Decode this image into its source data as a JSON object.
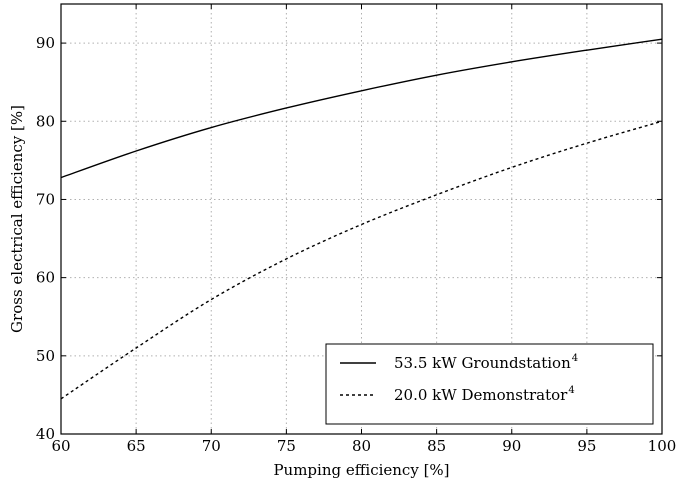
{
  "chart_data": {
    "type": "line",
    "xlabel": "Pumping efficiency [%]",
    "ylabel": "Gross electrical efficiency [%]",
    "xlim": [
      60,
      100
    ],
    "ylim": [
      40,
      95
    ],
    "xticks": [
      60,
      65,
      70,
      75,
      80,
      85,
      90,
      95,
      100
    ],
    "yticks": [
      40,
      50,
      60,
      70,
      80,
      90
    ],
    "grid": true,
    "legend_position": "lower-right",
    "x": [
      60,
      65,
      70,
      75,
      80,
      85,
      90,
      95,
      100
    ],
    "series": [
      {
        "name": "53.5 kW Groundstation",
        "superscript": "4",
        "linestyle": "solid",
        "color": "#000000",
        "values": [
          72.8,
          76.2,
          79.2,
          81.7,
          83.9,
          85.9,
          87.6,
          89.1,
          90.5
        ]
      },
      {
        "name": "20.0 kW Demonstrator",
        "superscript": "4",
        "linestyle": "dotted",
        "color": "#000000",
        "values": [
          44.5,
          51.0,
          57.2,
          62.4,
          66.8,
          70.6,
          74.1,
          77.2,
          80.0
        ]
      }
    ]
  }
}
